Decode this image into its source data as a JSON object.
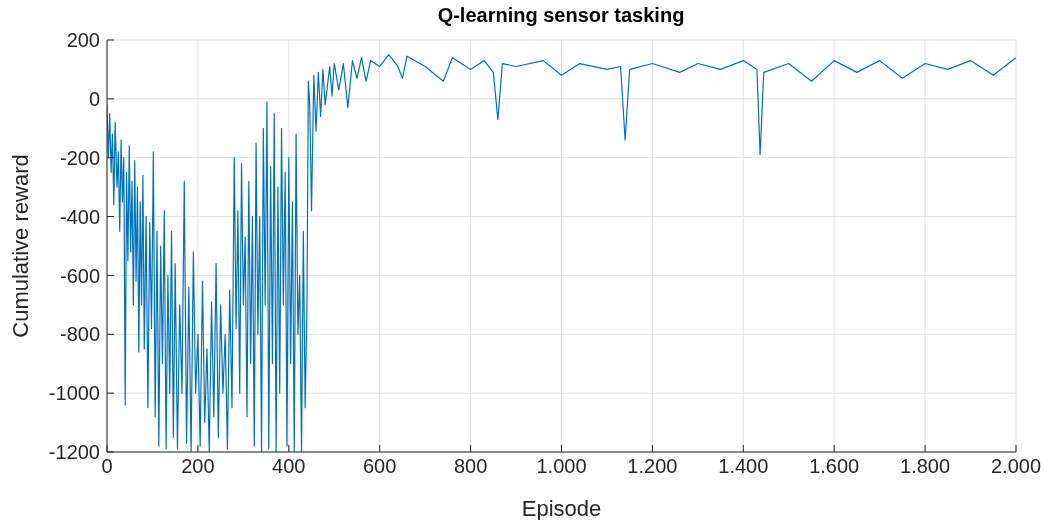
{
  "chart_data": {
    "type": "line",
    "title": "Q-learning sensor tasking",
    "xlabel": "Episode",
    "ylabel": "Cumulative reward",
    "xlim": [
      0,
      2000
    ],
    "xticks": [
      0,
      200,
      400,
      600,
      800,
      {
        "value": 1000,
        "label": "1.000"
      },
      {
        "value": 1200,
        "label": "1.200"
      },
      {
        "value": 1400,
        "label": "1.400"
      },
      {
        "value": 1600,
        "label": "1.600"
      },
      {
        "value": 1800,
        "label": "1.800"
      },
      {
        "value": 2000,
        "label": "2.000"
      }
    ],
    "ylim": [
      -1200,
      200
    ],
    "yticks": [
      -1200,
      -1000,
      -800,
      -600,
      -400,
      -200,
      0,
      200
    ],
    "grid": true,
    "marker": "none",
    "line_style": "solid",
    "series": [
      {
        "color": "#0072bd",
        "x": [
          0,
          3,
          6,
          9,
          12,
          15,
          18,
          22,
          25,
          28,
          31,
          34,
          37,
          40,
          43,
          46,
          49,
          52,
          55,
          58,
          61,
          64,
          67,
          70,
          73,
          76,
          79,
          82,
          86,
          90,
          94,
          98,
          102,
          106,
          110,
          114,
          118,
          122,
          126,
          130,
          134,
          138,
          142,
          146,
          150,
          155,
          160,
          165,
          170,
          175,
          180,
          185,
          190,
          195,
          200,
          205,
          210,
          215,
          220,
          225,
          230,
          235,
          240,
          245,
          250,
          255,
          260,
          265,
          270,
          275,
          280,
          284,
          288,
          292,
          296,
          300,
          304,
          308,
          312,
          316,
          320,
          324,
          328,
          332,
          336,
          340,
          344,
          348,
          352,
          356,
          360,
          364,
          368,
          372,
          376,
          380,
          384,
          388,
          392,
          396,
          400,
          404,
          408,
          412,
          416,
          420,
          424,
          428,
          432,
          436,
          440,
          443,
          446,
          450,
          455,
          460,
          465,
          470,
          475,
          480,
          490,
          495,
          500,
          510,
          520,
          530,
          540,
          550,
          560,
          570,
          580,
          600,
          620,
          640,
          650,
          660,
          700,
          740,
          760,
          800,
          830,
          850,
          860,
          870,
          900,
          960,
          1000,
          1040,
          1100,
          1130,
          1140,
          1150,
          1200,
          1260,
          1300,
          1350,
          1400,
          1430,
          1437,
          1445,
          1500,
          1550,
          1600,
          1650,
          1700,
          1750,
          1800,
          1850,
          1900,
          1950,
          2000
        ],
        "values": [
          -20,
          -200,
          -50,
          -250,
          -120,
          -360,
          -80,
          -300,
          -180,
          -450,
          -140,
          -350,
          -200,
          -1040,
          -250,
          -550,
          -160,
          -520,
          -280,
          -700,
          -210,
          -620,
          -300,
          -860,
          -350,
          -700,
          -260,
          -850,
          -400,
          -1050,
          -420,
          -780,
          -180,
          -1080,
          -450,
          -1180,
          -500,
          -900,
          -380,
          -1190,
          -600,
          -1000,
          -450,
          -1150,
          -560,
          -1190,
          -700,
          -1000,
          -280,
          -1170,
          -640,
          -1200,
          -520,
          -1000,
          -800,
          -1180,
          -620,
          -1100,
          -850,
          -1200,
          -690,
          -1080,
          -560,
          -1150,
          -700,
          -1000,
          -800,
          -1190,
          -650,
          -1050,
          -200,
          -780,
          -380,
          -1000,
          -220,
          -700,
          -470,
          -1080,
          -280,
          -900,
          -400,
          -1180,
          -150,
          -800,
          -400,
          -1200,
          -100,
          -700,
          -10,
          -1190,
          -230,
          -900,
          -50,
          -1200,
          -300,
          -1000,
          -100,
          -700,
          -250,
          -1180,
          -200,
          -900,
          -350,
          -1200,
          -120,
          -800,
          -600,
          -1200,
          -450,
          -1050,
          -700,
          60,
          -20,
          -380,
          80,
          -110,
          90,
          -60,
          100,
          -20,
          110,
          10,
          120,
          30,
          120,
          -30,
          130,
          70,
          140,
          60,
          130,
          110,
          150,
          110,
          70,
          145,
          110,
          60,
          140,
          100,
          130,
          90,
          -70,
          120,
          110,
          130,
          80,
          120,
          100,
          110,
          -140,
          100,
          120,
          90,
          120,
          100,
          130,
          100,
          -190,
          90,
          120,
          60,
          130,
          90,
          130,
          70,
          120,
          100,
          130,
          80,
          140
        ]
      }
    ]
  }
}
